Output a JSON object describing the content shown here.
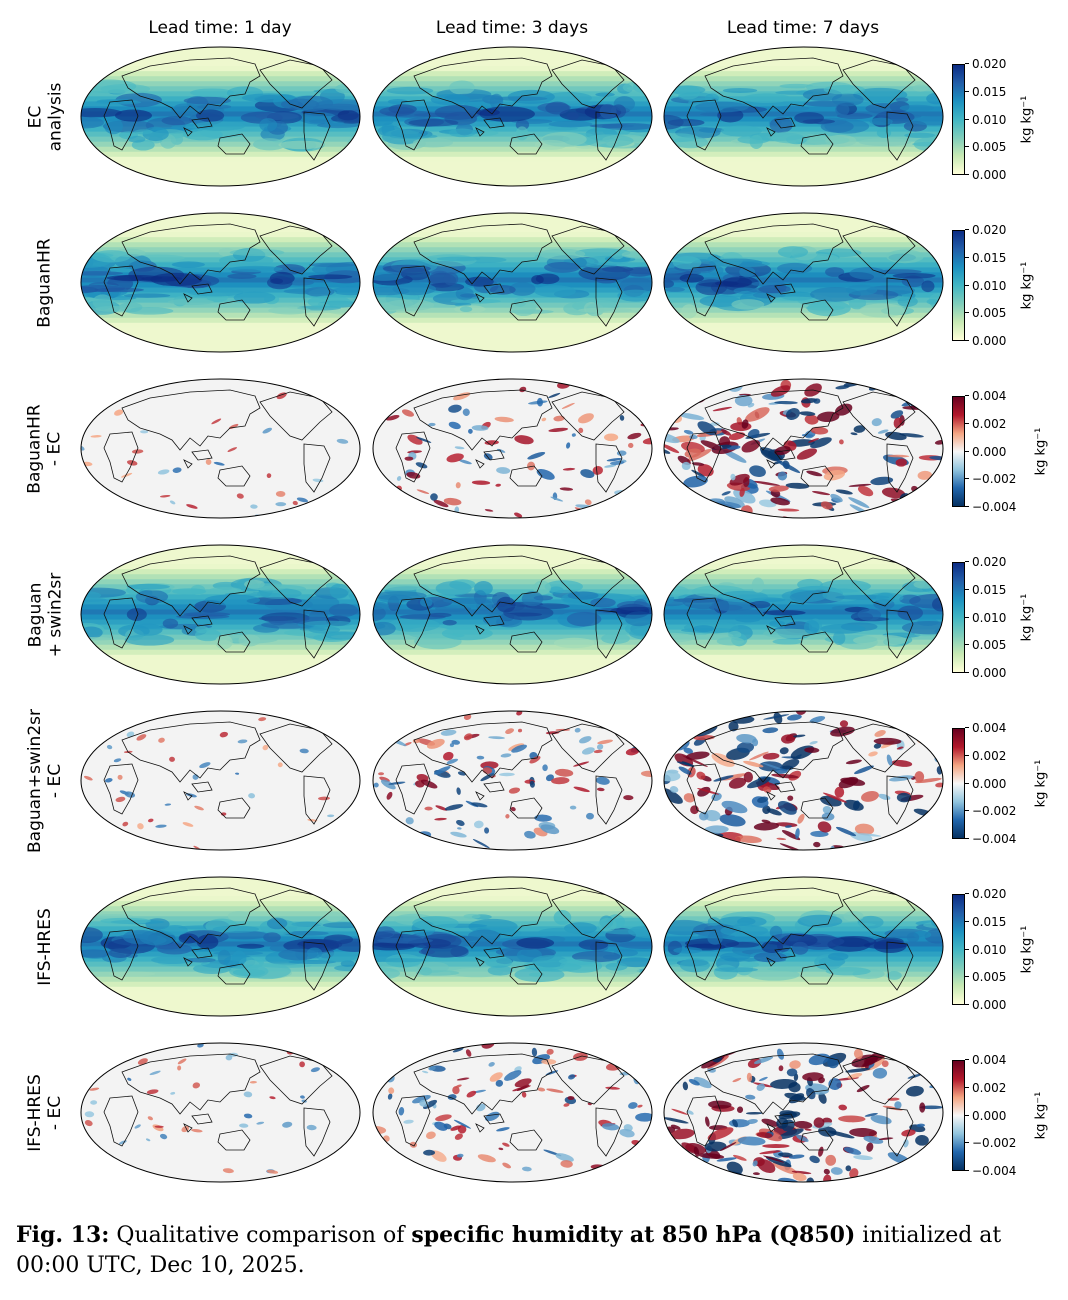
{
  "columns": [
    "Lead time: 1 day",
    "Lead time: 3 days",
    "Lead time: 7 days"
  ],
  "rows": [
    {
      "label_lines": [
        "EC",
        "analysis"
      ],
      "type": "field"
    },
    {
      "label_lines": [
        "BaguanHR"
      ],
      "type": "field"
    },
    {
      "label_lines": [
        "BaguanHR",
        "- EC"
      ],
      "type": "diff"
    },
    {
      "label_lines": [
        "Baguan",
        "+ swin2sr"
      ],
      "type": "field"
    },
    {
      "label_lines": [
        "Baguan+swin2sr",
        "- EC"
      ],
      "type": "diff"
    },
    {
      "label_lines": [
        "IFS-HRES"
      ],
      "type": "field"
    },
    {
      "label_lines": [
        "IFS-HRES",
        "- EC"
      ],
      "type": "diff"
    }
  ],
  "colorbars": {
    "field": {
      "ticks": [
        "0.020",
        "0.015",
        "0.010",
        "0.005",
        "0.000"
      ],
      "range": [
        0.0,
        0.02
      ],
      "colormap": "YlGnBu",
      "colors": [
        "#ffffd9",
        "#c7e9b4",
        "#7fcdbb",
        "#41b6c4",
        "#1d91c0",
        "#225ea8",
        "#0c2c84"
      ]
    },
    "diff": {
      "ticks": [
        "0.004",
        "0.002",
        "0.000",
        "−0.002",
        "−0.004"
      ],
      "range": [
        -0.004,
        0.004
      ],
      "colormap": "RdBu_r",
      "colors": [
        "#053061",
        "#2166ac",
        "#92c5de",
        "#f7f7f7",
        "#f4a582",
        "#b2182b",
        "#67001f"
      ]
    },
    "unit": "kg kg⁻¹"
  },
  "caption": {
    "fig_label": "Fig. 13:",
    "text1": " Qualitative comparison of ",
    "bold": "specific humidity at 850 hPa (Q850)",
    "text2": " initialized at 00:00 UTC, Dec 10, 2025."
  }
}
